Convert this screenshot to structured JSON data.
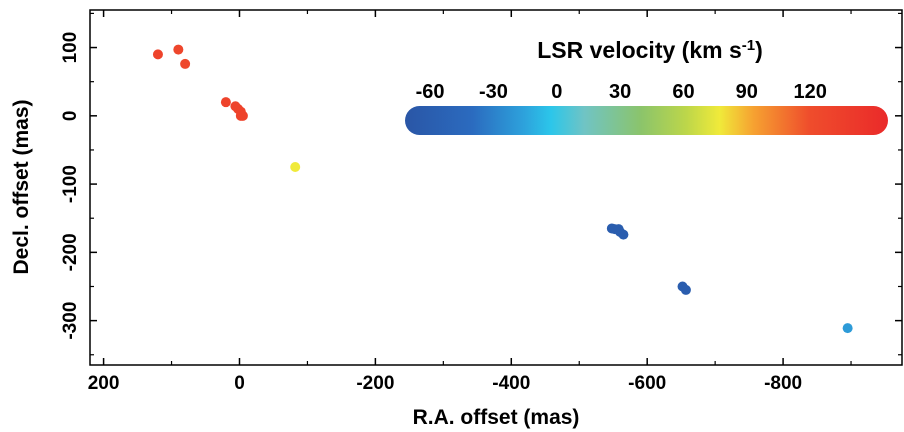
{
  "chart_data": {
    "type": "scatter",
    "xlabel": "R.A. offset (mas)",
    "ylabel": "Decl. offset (mas)",
    "xlim": [
      220,
      -975
    ],
    "ylim": [
      -365,
      155
    ],
    "x_ticks": [
      200,
      0,
      -200,
      -400,
      -600,
      -800
    ],
    "y_ticks": [
      100,
      0,
      -100,
      -200,
      -300
    ],
    "points": [
      {
        "x": 120,
        "y": 90,
        "v": 125
      },
      {
        "x": 90,
        "y": 97,
        "v": 122
      },
      {
        "x": 80,
        "y": 76,
        "v": 120
      },
      {
        "x": 20,
        "y": 20,
        "v": 125
      },
      {
        "x": 6,
        "y": 14,
        "v": 125
      },
      {
        "x": 2,
        "y": 10,
        "v": 125
      },
      {
        "x": -2,
        "y": 6,
        "v": 125
      },
      {
        "x": -2,
        "y": 0,
        "v": 125
      },
      {
        "x": -5,
        "y": 0,
        "v": 125
      },
      {
        "x": -82,
        "y": -75,
        "v": 75
      },
      {
        "x": -548,
        "y": -165,
        "v": -55
      },
      {
        "x": -552,
        "y": -166,
        "v": -55
      },
      {
        "x": -558,
        "y": -166,
        "v": -55
      },
      {
        "x": -560,
        "y": -170,
        "v": -55
      },
      {
        "x": -565,
        "y": -174,
        "v": -55
      },
      {
        "x": -652,
        "y": -250,
        "v": -55
      },
      {
        "x": -657,
        "y": -255,
        "v": -55
      },
      {
        "x": -895,
        "y": -311,
        "v": -15
      }
    ],
    "colorbar": {
      "title": "LSR velocity (km s",
      "title_sup": "-1",
      "title_end": ")",
      "range": [
        -65,
        150
      ],
      "ticks": [
        "-60",
        "-30",
        "0",
        "30",
        "60",
        "90",
        "120"
      ],
      "tick_values": [
        -60,
        -30,
        0,
        30,
        60,
        90,
        120
      ],
      "placement": "top-right inside plot",
      "stops": [
        {
          "v": -65,
          "color": "#2a56a6"
        },
        {
          "v": -35,
          "color": "#2b6bbf"
        },
        {
          "v": -12,
          "color": "#2da2dc"
        },
        {
          "v": 0,
          "color": "#2cc6ea"
        },
        {
          "v": 15,
          "color": "#70c4c4"
        },
        {
          "v": 40,
          "color": "#8bc46b"
        },
        {
          "v": 60,
          "color": "#bcd64a"
        },
        {
          "v": 75,
          "color": "#f0ea3a"
        },
        {
          "v": 90,
          "color": "#f6a231"
        },
        {
          "v": 115,
          "color": "#ef4d2c"
        },
        {
          "v": 150,
          "color": "#ea2a2a"
        }
      ]
    }
  }
}
